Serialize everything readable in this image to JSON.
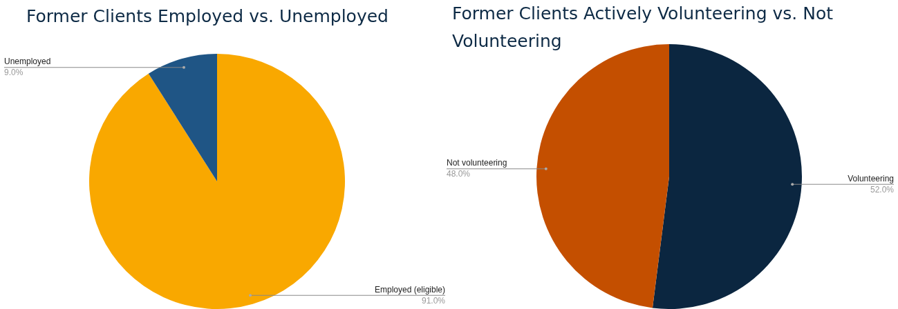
{
  "chart_data": [
    {
      "type": "pie",
      "title": "Former Clients Employed vs. Unemployed",
      "categories": [
        "Employed (eligible)",
        "Unemployed"
      ],
      "values": [
        91,
        9
      ],
      "colors": [
        "#f9a800",
        "#1f5585"
      ],
      "value_labels": [
        "91.0%",
        "9.0%"
      ]
    },
    {
      "type": "pie",
      "title": "Former Clients Actively Volunteering vs. Not Volunteering",
      "categories": [
        "Volunteering",
        "Not volunteering"
      ],
      "values": [
        52,
        48
      ],
      "colors": [
        "#0b2640",
        "#c44f00"
      ],
      "value_labels": [
        "52.0%",
        "48.0%"
      ]
    }
  ]
}
